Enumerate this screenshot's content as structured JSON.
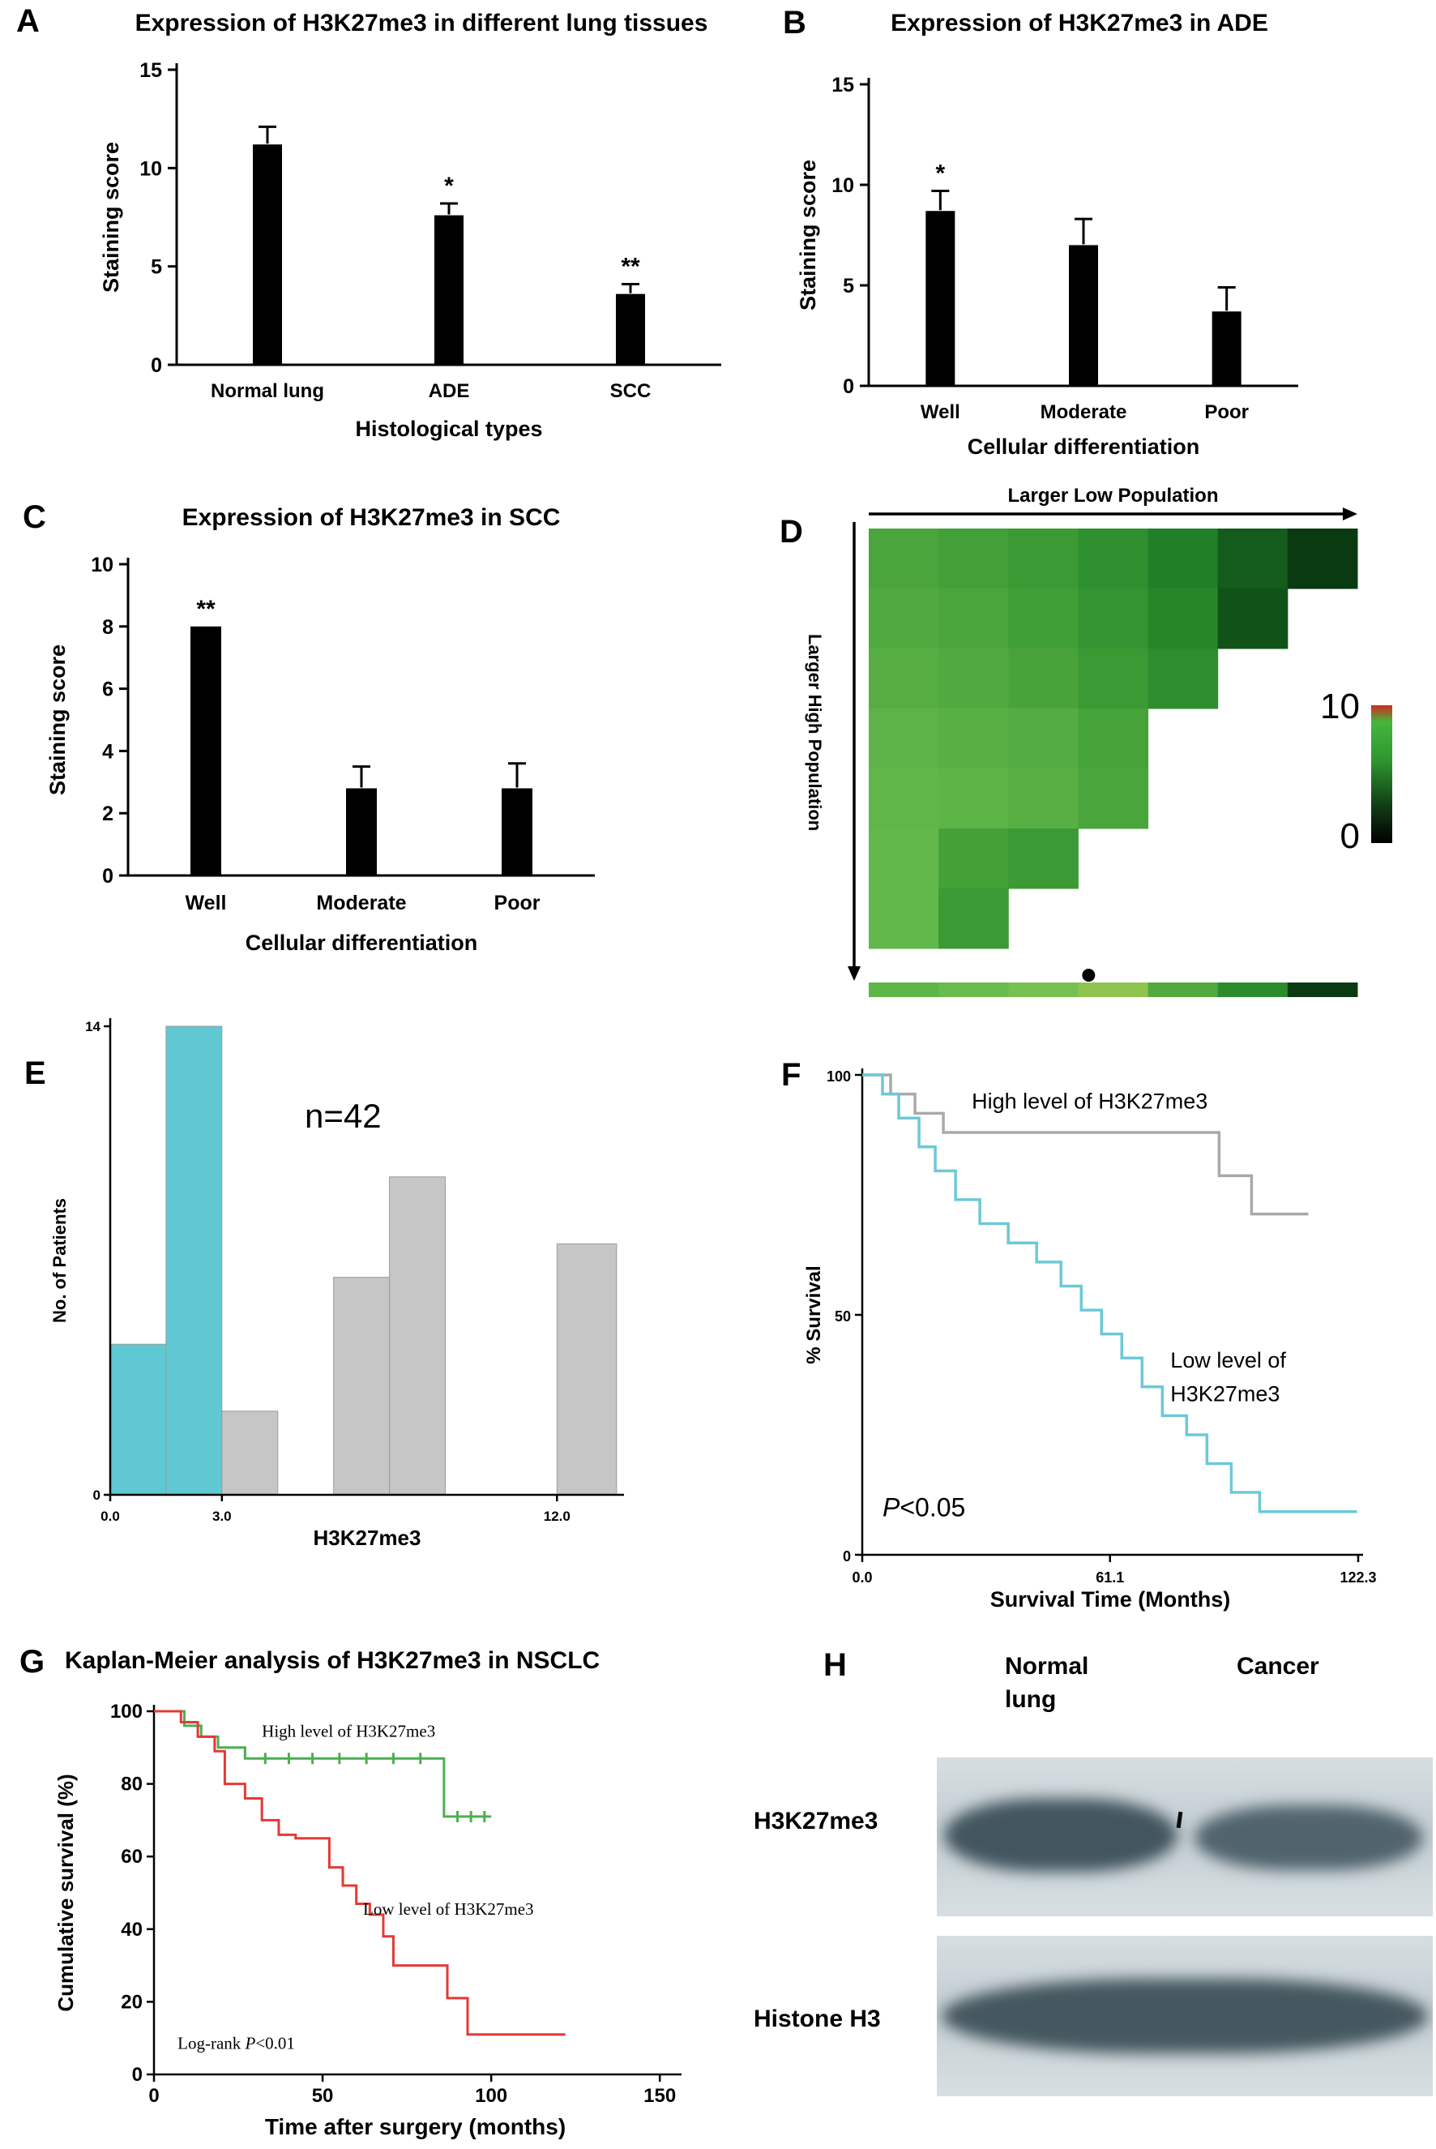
{
  "panels": {
    "a": {
      "letter": "A"
    },
    "b": {
      "letter": "B"
    },
    "c": {
      "letter": "C"
    },
    "d": {
      "letter": "D"
    },
    "e": {
      "letter": "E"
    },
    "f": {
      "letter": "F"
    },
    "g": {
      "letter": "G"
    },
    "h": {
      "letter": "H",
      "col_header_1": "Normal lung",
      "col_header_2": "Cancer",
      "row_label_1": "H3K27me3",
      "row_label_2": "Histone H3"
    }
  },
  "chart_data": [
    {
      "id": "A",
      "type": "bar",
      "title": "Expression of H3K27me3 in different lung tissues",
      "xlabel": "Histological types",
      "ylabel": "Staining score",
      "ylim": [
        0,
        15
      ],
      "yticks": [
        0,
        5,
        10,
        15
      ],
      "categories": [
        "Normal lung",
        "ADE",
        "SCC"
      ],
      "values": [
        11.2,
        7.6,
        3.6
      ],
      "errors": [
        0.9,
        0.6,
        0.5
      ],
      "significance": [
        "",
        "*",
        "**"
      ],
      "bar_color": "#000000"
    },
    {
      "id": "B",
      "type": "bar",
      "title": "Expression of H3K27me3 in ADE",
      "xlabel": "Cellular differentiation",
      "ylabel": "Staining score",
      "ylim": [
        0,
        15
      ],
      "yticks": [
        0,
        5,
        10,
        15
      ],
      "categories": [
        "Well",
        "Moderate",
        "Poor"
      ],
      "values": [
        8.7,
        7.0,
        3.7
      ],
      "errors": [
        1.0,
        1.3,
        1.2
      ],
      "significance": [
        "*",
        "",
        ""
      ],
      "bar_color": "#000000"
    },
    {
      "id": "C",
      "type": "bar",
      "title": "Expression of H3K27me3 in SCC",
      "xlabel": "Cellular differentiation",
      "ylabel": "Staining score",
      "ylim": [
        0,
        10
      ],
      "yticks": [
        0,
        2,
        4,
        6,
        8,
        10
      ],
      "categories": [
        "Well",
        "Moderate",
        "Poor"
      ],
      "values": [
        8.0,
        2.8,
        2.8
      ],
      "errors": [
        0,
        0.7,
        0.8
      ],
      "significance": [
        "**",
        "",
        ""
      ],
      "bar_color": "#000000"
    },
    {
      "id": "D",
      "type": "heatmap",
      "top_label": "Larger Low Population",
      "left_label": "Larger High Population",
      "colorbar_max": "10",
      "colorbar_min": "0",
      "rows": [
        [
          "#4aa53c",
          "#43a038",
          "#3b9a34",
          "#2f9030",
          "#217f28",
          "#135c1c",
          "#093a11"
        ],
        [
          "#50aa3f",
          "#4aa53c",
          "#419f37",
          "#349431",
          "#278728",
          "#115219",
          null
        ],
        [
          "#56ae43",
          "#50aa3f",
          "#48a43a",
          "#3b9a34",
          "#2d8e2e",
          null,
          null
        ],
        [
          "#5cb347",
          "#58b045",
          "#54ad42",
          "#46a339",
          null,
          null,
          null
        ],
        [
          "#60b649",
          "#5db447",
          "#58b045",
          "#4aa53c",
          null,
          null,
          null
        ],
        [
          "#62b84b",
          "#44a138",
          "#3b9a34",
          null,
          null,
          null,
          null
        ],
        [
          "#62b84b",
          "#3b9a34",
          null,
          null,
          null,
          null,
          null
        ]
      ],
      "bottom_strip": [
        "#5fb648",
        "#68bb4d",
        "#77c153",
        "#8ec44f",
        "#52a93e",
        "#2c8c2d",
        "#0b3a12"
      ],
      "dot_fraction": 0.45
    },
    {
      "id": "E",
      "type": "histogram",
      "annotation": "n=42",
      "xlabel": "H3K27me3",
      "ylabel": "No. of Patients",
      "ylim": [
        0,
        14
      ],
      "yticks": [
        0,
        14
      ],
      "xlim": [
        0,
        13.8
      ],
      "xticks": [
        0,
        3,
        12
      ],
      "xtick_labels": [
        "0.0",
        "3.0",
        "12.0"
      ],
      "bins": [
        {
          "x0": 0,
          "x1": 1.5,
          "count": 4.5,
          "color": "#5fc8d3"
        },
        {
          "x0": 1.5,
          "x1": 3.0,
          "count": 14,
          "color": "#5fc8d3"
        },
        {
          "x0": 3.0,
          "x1": 4.5,
          "count": 2.5,
          "color": "#c6c6c6"
        },
        {
          "x0": 6.0,
          "x1": 7.5,
          "count": 6.5,
          "color": "#c6c6c6"
        },
        {
          "x0": 7.5,
          "x1": 9.0,
          "count": 9.5,
          "color": "#c6c6c6"
        },
        {
          "x0": 12.0,
          "x1": 13.6,
          "count": 7.5,
          "color": "#c6c6c6"
        }
      ]
    },
    {
      "id": "F",
      "type": "km",
      "xlabel": "Survival Time (Months)",
      "ylabel": "% Survival",
      "ylim": [
        0,
        100
      ],
      "yticks": [
        0,
        50,
        100
      ],
      "xlim": [
        0,
        122.3
      ],
      "xticks": [
        0,
        61.1,
        122.3
      ],
      "xtick_labels": [
        "0.0",
        "61.1",
        "122.3"
      ],
      "pvalue": "P<0.05",
      "series": [
        {
          "name": "High level of H3K27me3",
          "color": "#a9a9a9",
          "points": [
            [
              0,
              100
            ],
            [
              7,
              100
            ],
            [
              7,
              96
            ],
            [
              13,
              96
            ],
            [
              13,
              92
            ],
            [
              20,
              92
            ],
            [
              20,
              88
            ],
            [
              88,
              88
            ],
            [
              88,
              79
            ],
            [
              96,
              79
            ],
            [
              96,
              71
            ],
            [
              110,
              71
            ]
          ],
          "censors": []
        },
        {
          "name": "Low level of H3K27me3",
          "color": "#6cc9d6",
          "points": [
            [
              0,
              100
            ],
            [
              5,
              100
            ],
            [
              5,
              96
            ],
            [
              9,
              96
            ],
            [
              9,
              91
            ],
            [
              14,
              91
            ],
            [
              14,
              85
            ],
            [
              18,
              85
            ],
            [
              18,
              80
            ],
            [
              23,
              80
            ],
            [
              23,
              74
            ],
            [
              29,
              74
            ],
            [
              29,
              69
            ],
            [
              36,
              69
            ],
            [
              36,
              65
            ],
            [
              43,
              65
            ],
            [
              43,
              61
            ],
            [
              49,
              61
            ],
            [
              49,
              56
            ],
            [
              54,
              56
            ],
            [
              54,
              51
            ],
            [
              59,
              51
            ],
            [
              59,
              46
            ],
            [
              64,
              46
            ],
            [
              64,
              41
            ],
            [
              69,
              41
            ],
            [
              69,
              35
            ],
            [
              74,
              35
            ],
            [
              74,
              29
            ],
            [
              80,
              29
            ],
            [
              80,
              25
            ],
            [
              85,
              25
            ],
            [
              85,
              19
            ],
            [
              91,
              19
            ],
            [
              91,
              13
            ],
            [
              98,
              13
            ],
            [
              98,
              9
            ],
            [
              122,
              9
            ]
          ],
          "censors": []
        }
      ],
      "labels": [
        {
          "text": "High level of H3K27me3",
          "x": 27,
          "y": 93,
          "color": "#a9a9a9"
        },
        {
          "text": "Low level of",
          "x": 76,
          "y": 39,
          "color": "#45b9c9"
        },
        {
          "text": "H3K27me3",
          "x": 76,
          "y": 32,
          "color": "#45b9c9"
        }
      ]
    },
    {
      "id": "G",
      "type": "km",
      "title": "Kaplan-Meier analysis of H3K27me3 in NSCLC",
      "xlabel": "Time after surgery (months)",
      "ylabel": "Cumulative survival (%)",
      "ylim": [
        0,
        100
      ],
      "yticks": [
        0,
        20,
        40,
        60,
        80,
        100
      ],
      "xlim": [
        0,
        155
      ],
      "xticks": [
        0,
        50,
        100,
        150
      ],
      "xtick_labels": [
        "0",
        "50",
        "100",
        "150"
      ],
      "pvalue": "Log-rank P<0.01",
      "series": [
        {
          "name": "High level of H3K27me3",
          "color": "#4caf50",
          "points": [
            [
              0,
              100
            ],
            [
              9,
              100
            ],
            [
              9,
              96
            ],
            [
              14,
              96
            ],
            [
              14,
              93
            ],
            [
              19,
              93
            ],
            [
              19,
              90
            ],
            [
              27,
              90
            ],
            [
              27,
              87
            ],
            [
              86,
              87
            ],
            [
              86,
              71
            ],
            [
              100,
              71
            ]
          ],
          "censors": [
            [
              33,
              87
            ],
            [
              40,
              87
            ],
            [
              47,
              87
            ],
            [
              55,
              87
            ],
            [
              63,
              87
            ],
            [
              71,
              87
            ],
            [
              79,
              87
            ],
            [
              90,
              71
            ],
            [
              94,
              71
            ],
            [
              98,
              71
            ]
          ]
        },
        {
          "name": "Low level of H3K27me3",
          "color": "#e53935",
          "points": [
            [
              0,
              100
            ],
            [
              8,
              100
            ],
            [
              8,
              97
            ],
            [
              13,
              97
            ],
            [
              13,
              93
            ],
            [
              18,
              93
            ],
            [
              18,
              89
            ],
            [
              21,
              89
            ],
            [
              21,
              80
            ],
            [
              27,
              80
            ],
            [
              27,
              76
            ],
            [
              32,
              76
            ],
            [
              32,
              70
            ],
            [
              37,
              70
            ],
            [
              37,
              66
            ],
            [
              42,
              66
            ],
            [
              42,
              65
            ],
            [
              52,
              65
            ],
            [
              52,
              57
            ],
            [
              56,
              57
            ],
            [
              56,
              52
            ],
            [
              60,
              52
            ],
            [
              60,
              47
            ],
            [
              64,
              47
            ],
            [
              64,
              44
            ],
            [
              68,
              44
            ],
            [
              68,
              38
            ],
            [
              71,
              38
            ],
            [
              71,
              30
            ],
            [
              87,
              30
            ],
            [
              87,
              21
            ],
            [
              93,
              21
            ],
            [
              93,
              11
            ],
            [
              122,
              11
            ]
          ],
          "censors": []
        }
      ],
      "labels": [
        {
          "text": "High level of H3K27me3",
          "x": 32,
          "y": 93,
          "color": "#1a1a1a"
        },
        {
          "text": "Low level of H3K27me3",
          "x": 62,
          "y": 44,
          "color": "#1a1a1a"
        }
      ]
    }
  ]
}
